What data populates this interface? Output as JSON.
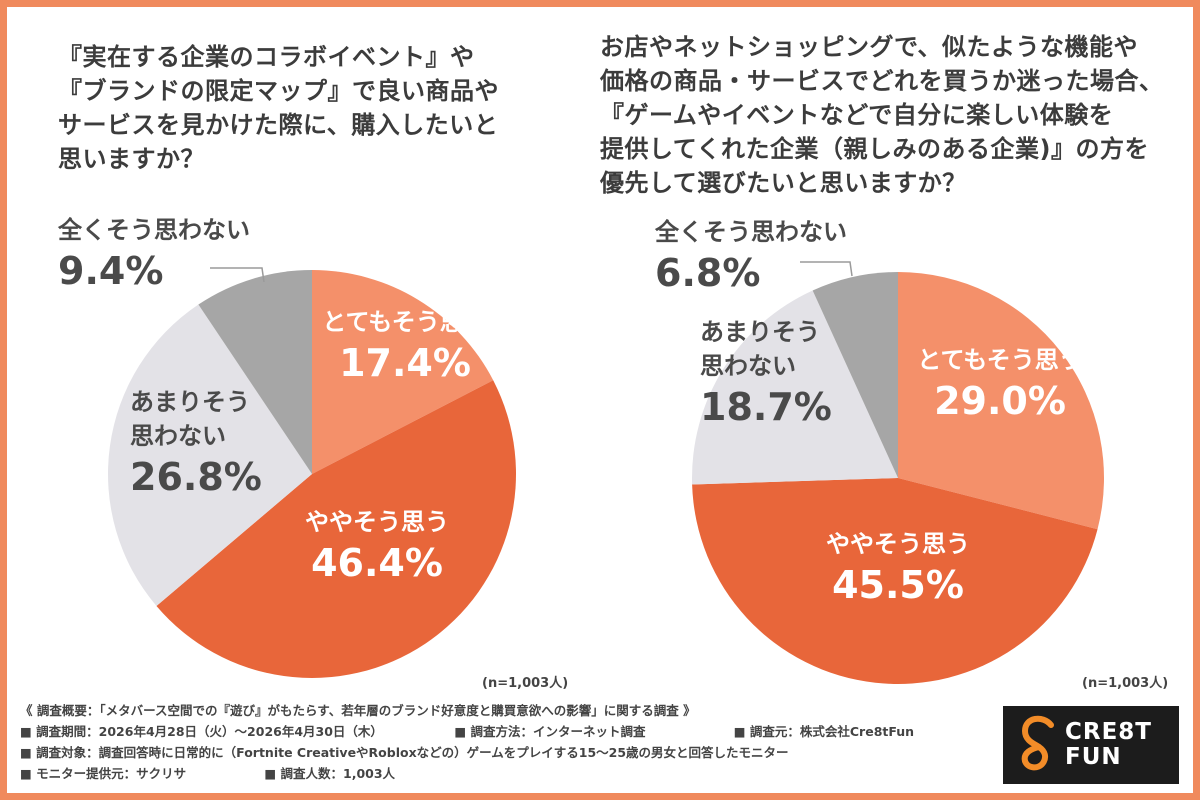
{
  "left": {
    "question_lines": [
      "『実在する企業のコラボイベント』や",
      "『ブランドの限定マップ』で良い商品や",
      "サービスを見かけた際に、購入したいと",
      "思いますか？"
    ],
    "n_label": "(n=1,003人)"
  },
  "right": {
    "question_lines": [
      "お店やネットショッピングで、似たような機能や",
      "価格の商品・サービスでどれを買うか迷った場合、",
      "『ゲームやイベントなどで自分に楽しい体験を",
      "提供してくれた企業（親しみのある企業)』の方を",
      "優先して選びたいと思いますか？"
    ],
    "n_label": "(n=1,003人)"
  },
  "chart_data": [
    {
      "type": "pie",
      "categories": [
        "とてもそう思う",
        "ややそう思う",
        "あまりそう思わない",
        "全くそう思わない"
      ],
      "values": [
        17.4,
        46.4,
        26.8,
        9.4
      ],
      "value_labels": [
        "17.4%",
        "46.4%",
        "26.8%",
        "9.4%"
      ],
      "label_lines": [
        [
          "とてもそう思う"
        ],
        [
          "ややそう思う"
        ],
        [
          "あまりそう",
          "思わない"
        ],
        [
          "全くそう思わない"
        ]
      ],
      "colors": [
        "#f4906a",
        "#e8663a",
        "#e3e2e7",
        "#a6a6a6"
      ],
      "label_colors": [
        "#ffffff",
        "#ffffff",
        "#4a4a4a",
        "#4a4a4a"
      ]
    },
    {
      "type": "pie",
      "categories": [
        "とてもそう思う",
        "ややそう思う",
        "あまりそう思わない",
        "全くそう思わない"
      ],
      "values": [
        29.0,
        45.5,
        18.7,
        6.8
      ],
      "value_labels": [
        "29.0%",
        "45.5%",
        "18.7%",
        "6.8%"
      ],
      "label_lines": [
        [
          "とてもそう思う"
        ],
        [
          "ややそう思う"
        ],
        [
          "あまりそう",
          "思わない"
        ],
        [
          "全くそう思わない"
        ]
      ],
      "colors": [
        "#f4906a",
        "#e8663a",
        "#e3e2e7",
        "#a6a6a6"
      ],
      "label_colors": [
        "#ffffff",
        "#ffffff",
        "#4a4a4a",
        "#4a4a4a"
      ]
    }
  ],
  "footer": {
    "overview": "《 調査概要：「メタバース空間での『遊び』がもたらす、若年層のブランド好意度と購買意欲への影響」に関する調査 》",
    "period": "■ 調査期間：2026年4月28日（火）〜2026年4月30日（木）",
    "method": "■ 調査方法：インターネット調査",
    "source": "■ 調査元：株式会社Cre8tFun",
    "target": "■ 調査対象：調査回答時に日常的に（Fortnite CreativeやRobloxなどの）ゲームをプレイする15〜25歳の男女と回答したモニター",
    "provider": "■ モニター提供元：サクリサ",
    "count": "■ 調査人数：1,003人"
  },
  "logo": {
    "line1": "CRE8T",
    "line2": "FUN",
    "bg": "#1c1c1c",
    "accent": "#f28c28"
  }
}
